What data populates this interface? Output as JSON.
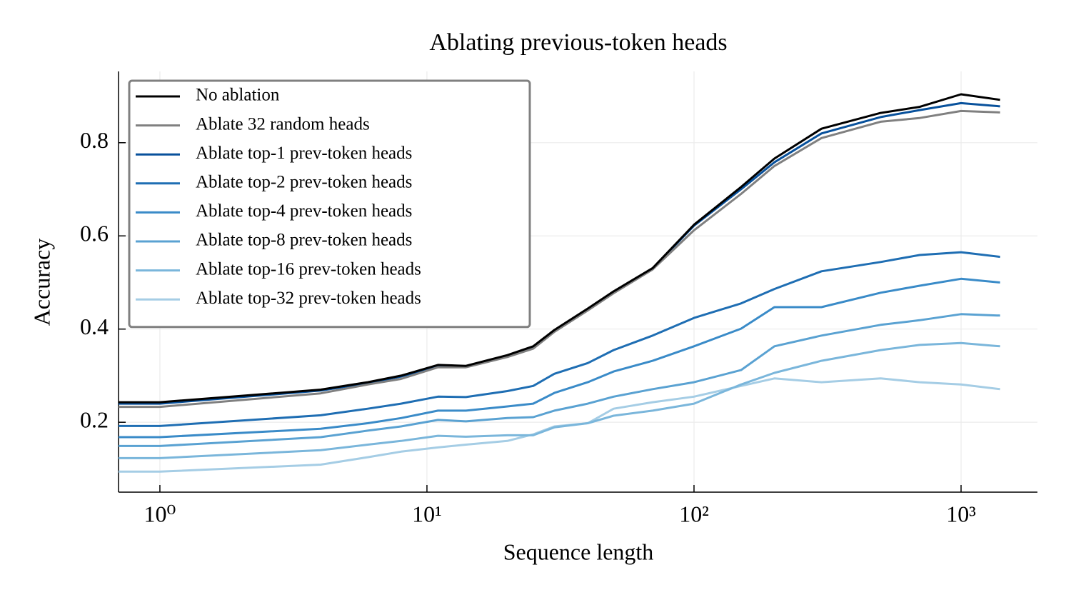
{
  "chart_data": {
    "type": "line",
    "title": "Ablating previous-token heads",
    "x_label": "Sequence length",
    "y_label": "Accuracy",
    "x_scale": "log",
    "grid": true,
    "legend": "upper left",
    "xlim": [
      0.7,
      1932
    ],
    "ylim": [
      0.05,
      0.953
    ],
    "xticks": [
      {
        "value": 1,
        "label": "10⁰"
      },
      {
        "value": 10,
        "label": "10¹"
      },
      {
        "value": 100,
        "label": "10²"
      },
      {
        "value": 1000,
        "label": "10³"
      }
    ],
    "yticks": [
      0.2,
      0.4,
      0.6,
      0.8
    ],
    "x": [
      0.7,
      1,
      4,
      6,
      8,
      11,
      14,
      20,
      25,
      30,
      40,
      50,
      70,
      100,
      150,
      200,
      300,
      500,
      700,
      1000,
      1400
    ],
    "series": [
      {
        "name": "No ablation",
        "color": "#000000",
        "values": [
          0.243,
          0.243,
          0.27,
          0.286,
          0.3,
          0.323,
          0.321,
          0.344,
          0.363,
          0.398,
          0.444,
          0.481,
          0.531,
          0.624,
          0.705,
          0.766,
          0.83,
          0.864,
          0.877,
          0.904,
          0.892
        ]
      },
      {
        "name": "Ablate 32 random heads",
        "color": "#808080",
        "values": [
          0.233,
          0.233,
          0.262,
          0.281,
          0.293,
          0.318,
          0.318,
          0.34,
          0.358,
          0.394,
          0.44,
          0.477,
          0.528,
          0.612,
          0.69,
          0.75,
          0.81,
          0.845,
          0.853,
          0.868,
          0.865
        ]
      },
      {
        "name": "Ablate top-1 prev-token heads",
        "color": "#08519c",
        "values": [
          0.24,
          0.24,
          0.268,
          0.284,
          0.298,
          0.321,
          0.319,
          0.342,
          0.36,
          0.396,
          0.443,
          0.48,
          0.53,
          0.622,
          0.7,
          0.758,
          0.82,
          0.855,
          0.87,
          0.885,
          0.878
        ]
      },
      {
        "name": "Ablate top-2 prev-token heads",
        "color": "#1f6eb3",
        "values": [
          0.192,
          0.192,
          0.215,
          0.229,
          0.24,
          0.255,
          0.254,
          0.267,
          0.278,
          0.304,
          0.327,
          0.355,
          0.386,
          0.424,
          0.455,
          0.486,
          0.524,
          0.544,
          0.559,
          0.565,
          0.555
        ]
      },
      {
        "name": "Ablate top-4 prev-token heads",
        "color": "#3a8bc8",
        "values": [
          0.168,
          0.168,
          0.186,
          0.198,
          0.209,
          0.225,
          0.225,
          0.234,
          0.24,
          0.263,
          0.286,
          0.309,
          0.332,
          0.363,
          0.401,
          0.447,
          0.447,
          0.478,
          0.493,
          0.508,
          0.5
        ]
      },
      {
        "name": "Ablate top-8 prev-token heads",
        "color": "#5aa2d2",
        "values": [
          0.149,
          0.149,
          0.168,
          0.182,
          0.191,
          0.205,
          0.202,
          0.209,
          0.211,
          0.225,
          0.24,
          0.255,
          0.271,
          0.286,
          0.312,
          0.363,
          0.386,
          0.409,
          0.419,
          0.432,
          0.429
        ]
      },
      {
        "name": "Ablate top-16 prev-token heads",
        "color": "#7ab6db",
        "values": [
          0.123,
          0.123,
          0.14,
          0.152,
          0.16,
          0.171,
          0.169,
          0.172,
          0.172,
          0.189,
          0.198,
          0.214,
          0.225,
          0.24,
          0.281,
          0.306,
          0.332,
          0.355,
          0.366,
          0.37,
          0.363
        ]
      },
      {
        "name": "Ablate top-32 prev-token heads",
        "color": "#a5cde5",
        "values": [
          0.094,
          0.094,
          0.109,
          0.125,
          0.137,
          0.146,
          0.152,
          0.16,
          0.174,
          0.191,
          0.198,
          0.229,
          0.243,
          0.255,
          0.278,
          0.294,
          0.286,
          0.294,
          0.286,
          0.281,
          0.271
        ]
      }
    ]
  }
}
